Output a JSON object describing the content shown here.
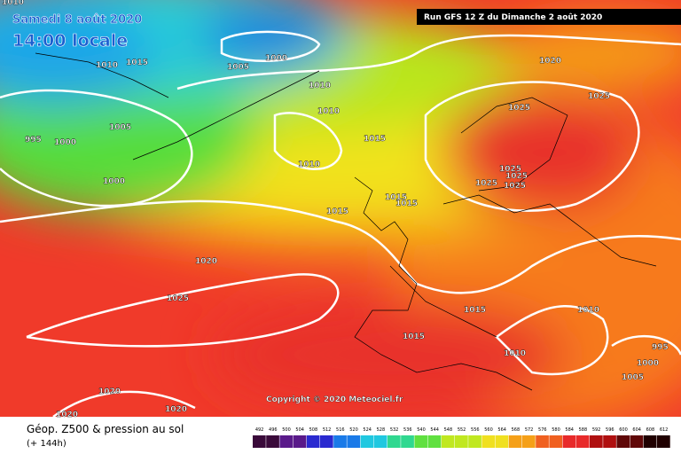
{
  "header": {
    "date": "Samedi 8 août 2020",
    "time": "14:00 locale",
    "run": "Run GFS 12 Z du Dimanche 2 août 2020"
  },
  "isobar_labels": [
    "1010",
    "1015",
    "1010",
    "1005",
    "1000",
    "1020",
    "1010",
    "1025",
    "1010",
    "1025",
    "995",
    "1000",
    "1005",
    "1015",
    "1010",
    "1025",
    "1025",
    "1025",
    "1025",
    "1000",
    "1015",
    "1015",
    "1015",
    "1020",
    "1025",
    "1015",
    "1010",
    "1015",
    "995",
    "1010",
    "1000",
    "1005",
    "1020",
    "1020",
    "1020"
  ],
  "copyright": "Copyright © 2020 Meteociel.fr",
  "footer": {
    "title": "Géop. Z500 & pression au sol",
    "subtitle": "(+ 144h)"
  },
  "legend": {
    "levels": [
      492,
      496,
      500,
      504,
      508,
      512,
      516,
      520,
      524,
      528,
      532,
      536,
      540,
      544,
      548,
      552,
      556,
      560,
      564,
      568,
      572,
      576,
      580,
      584,
      588,
      592,
      596,
      600,
      604,
      608,
      612
    ]
  }
}
